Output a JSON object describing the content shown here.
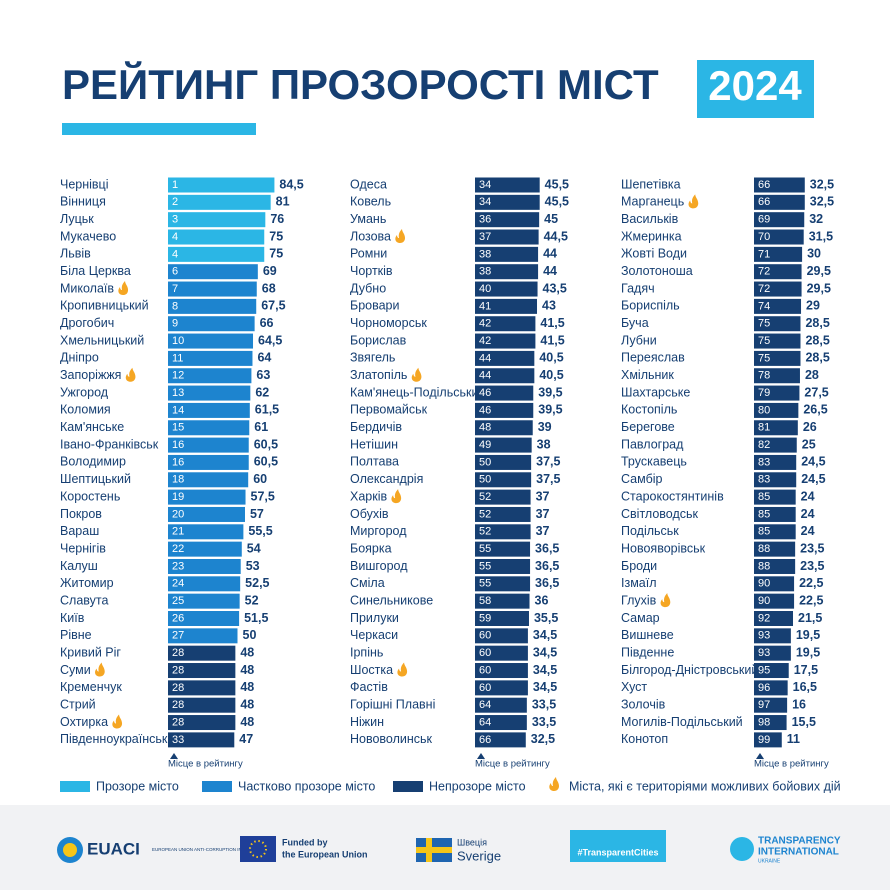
{
  "title": "РЕЙТИНГ ПРОЗОРОСТІ МІСТ",
  "title_year": "2024",
  "axis_note": "Місце в рейтингу",
  "legend": [
    {
      "label": "Прозоре місто",
      "color": "#2bb6e5"
    },
    {
      "label": "Частково прозоре місто",
      "color": "#1d84cf"
    },
    {
      "label": "Непрозоре місто",
      "color": "#163f72"
    },
    {
      "label": "Міста, які є територіями можливих бойових дій",
      "color": "#f5a623"
    }
  ],
  "cities": [
    {
      "city": "Чернівці",
      "rank": 1,
      "score": 84.5,
      "score_label": "84,5",
      "color": "#2bb6e5"
    },
    {
      "city": "Вінниця",
      "rank": 2,
      "score": 81,
      "color": "#2bb6e5"
    },
    {
      "city": "Луцьк",
      "rank": 3,
      "score": 76,
      "color": "#2bb6e5"
    },
    {
      "city": "Мукачево",
      "rank": 4,
      "score": 75,
      "color": "#2bb6e5"
    },
    {
      "city": "Львів",
      "rank": 4,
      "score": 75,
      "color": "#2bb6e5"
    },
    {
      "city": "Біла Церква",
      "rank": 6,
      "score": 69,
      "color": "#1d84cf"
    },
    {
      "city": "Миколаїв",
      "rank": 7,
      "score": 68,
      "color": "#1d84cf",
      "war": true
    },
    {
      "city": "Кропивницький",
      "rank": 8,
      "score": 67.5,
      "score_label": "67,5",
      "color": "#1d84cf"
    },
    {
      "city": "Дрогобич",
      "rank": 9,
      "score": 66,
      "color": "#1d84cf"
    },
    {
      "city": "Хмельницький",
      "rank": 10,
      "score": 64.5,
      "score_label": "64,5",
      "color": "#1d84cf"
    },
    {
      "city": "Дніпро",
      "rank": 11,
      "score": 64,
      "color": "#1d84cf"
    },
    {
      "city": "Запоріжжя",
      "rank": 12,
      "score": 63,
      "color": "#1d84cf",
      "war": true
    },
    {
      "city": "Ужгород",
      "rank": 13,
      "score": 62,
      "color": "#1d84cf"
    },
    {
      "city": "Коломия",
      "rank": 14,
      "score": 61.5,
      "score_label": "61,5",
      "color": "#1d84cf"
    },
    {
      "city": "Кам'янське",
      "rank": 15,
      "score": 61,
      "color": "#1d84cf"
    },
    {
      "city": "Івано-Франківськ",
      "rank": 16,
      "score": 60.5,
      "score_label": "60,5",
      "color": "#1d84cf"
    },
    {
      "city": "Володимир",
      "rank": 16,
      "score": 60.5,
      "score_label": "60,5",
      "color": "#1d84cf"
    },
    {
      "city": "Шептицький",
      "rank": 18,
      "score": 60,
      "color": "#1d84cf"
    },
    {
      "city": "Коростень",
      "rank": 19,
      "score": 57.5,
      "score_label": "57,5",
      "color": "#1d84cf"
    },
    {
      "city": "Покров",
      "rank": 20,
      "score": 57,
      "color": "#1d84cf"
    },
    {
      "city": "Вараш",
      "rank": 21,
      "score": 55.5,
      "score_label": "55,5",
      "color": "#1d84cf"
    },
    {
      "city": "Чернігів",
      "rank": 22,
      "score": 54,
      "color": "#1d84cf"
    },
    {
      "city": "Калуш",
      "rank": 23,
      "score": 53,
      "color": "#1d84cf"
    },
    {
      "city": "Житомир",
      "rank": 24,
      "score": 52.5,
      "score_label": "52,5",
      "color": "#1d84cf"
    },
    {
      "city": "Славута",
      "rank": 25,
      "score": 52,
      "color": "#1d84cf"
    },
    {
      "city": "Київ",
      "rank": 26,
      "score": 51.5,
      "score_label": "51,5",
      "color": "#1d84cf"
    },
    {
      "city": "Рівне",
      "rank": 27,
      "score": 50,
      "color": "#1d84cf"
    },
    {
      "city": "Кривий Ріг",
      "rank": 28,
      "score": 48,
      "color": "#163f72"
    },
    {
      "city": "Суми",
      "rank": 28,
      "score": 48,
      "color": "#163f72",
      "war": true
    },
    {
      "city": "Кременчук",
      "rank": 28,
      "score": 48,
      "color": "#163f72"
    },
    {
      "city": "Стрий",
      "rank": 28,
      "score": 48,
      "color": "#163f72"
    },
    {
      "city": "Охтирка",
      "rank": 28,
      "score": 48,
      "color": "#163f72",
      "war": true
    },
    {
      "city": "Південноукраїнськ",
      "rank": 33,
      "score": 47,
      "color": "#163f72"
    },
    {
      "city": "Одеса",
      "rank": 34,
      "score": 45.5,
      "score_label": "45,5",
      "color": "#163f72"
    },
    {
      "city": "Ковель",
      "rank": 34,
      "score": 45.5,
      "score_label": "45,5",
      "color": "#163f72"
    },
    {
      "city": "Умань",
      "rank": 36,
      "score": 45,
      "color": "#163f72"
    },
    {
      "city": "Лозова",
      "rank": 37,
      "score": 44.5,
      "score_label": "44,5",
      "color": "#163f72",
      "war": true
    },
    {
      "city": "Ромни",
      "rank": 38,
      "score": 44,
      "color": "#163f72"
    },
    {
      "city": "Чортків",
      "rank": 38,
      "score": 44,
      "color": "#163f72"
    },
    {
      "city": "Дубно",
      "rank": 40,
      "score": 43.5,
      "score_label": "43,5",
      "color": "#163f72"
    },
    {
      "city": "Бровари",
      "rank": 41,
      "score": 43,
      "color": "#163f72"
    },
    {
      "city": "Чорноморськ",
      "rank": 42,
      "score": 41.5,
      "score_label": "41,5",
      "color": "#163f72"
    },
    {
      "city": "Борислав",
      "rank": 42,
      "score": 41.5,
      "score_label": "41,5",
      "color": "#163f72"
    },
    {
      "city": "Звягель",
      "rank": 44,
      "score": 40.5,
      "score_label": "40,5",
      "color": "#163f72"
    },
    {
      "city": "Златопіль",
      "rank": 44,
      "score": 40.5,
      "score_label": "40,5",
      "color": "#163f72",
      "war": true
    },
    {
      "city": "Кам'янець-Подільський",
      "rank": 46,
      "score": 39.5,
      "score_label": "39,5",
      "color": "#163f72"
    },
    {
      "city": "Первомайськ",
      "rank": 46,
      "score": 39.5,
      "score_label": "39,5",
      "color": "#163f72"
    },
    {
      "city": "Бердичів",
      "rank": 48,
      "score": 39,
      "color": "#163f72"
    },
    {
      "city": "Нетішин",
      "rank": 49,
      "score": 38,
      "color": "#163f72"
    },
    {
      "city": "Полтава",
      "rank": 50,
      "score": 37.5,
      "score_label": "37,5",
      "color": "#163f72"
    },
    {
      "city": "Олександрія",
      "rank": 50,
      "score": 37.5,
      "score_label": "37,5",
      "color": "#163f72"
    },
    {
      "city": "Харків",
      "rank": 52,
      "score": 37,
      "color": "#163f72",
      "war": true
    },
    {
      "city": "Обухів",
      "rank": 52,
      "score": 37,
      "color": "#163f72"
    },
    {
      "city": "Миргород",
      "rank": 52,
      "score": 37,
      "color": "#163f72"
    },
    {
      "city": "Боярка",
      "rank": 55,
      "score": 36.5,
      "score_label": "36,5",
      "color": "#163f72"
    },
    {
      "city": "Вишгород",
      "rank": 55,
      "score": 36.5,
      "score_label": "36,5",
      "color": "#163f72"
    },
    {
      "city": "Сміла",
      "rank": 55,
      "score": 36.5,
      "score_label": "36,5",
      "color": "#163f72"
    },
    {
      "city": "Синельникове",
      "rank": 58,
      "score": 36,
      "color": "#163f72"
    },
    {
      "city": "Прилуки",
      "rank": 59,
      "score": 35.5,
      "score_label": "35,5",
      "color": "#163f72"
    },
    {
      "city": "Черкаси",
      "rank": 60,
      "score": 34.5,
      "score_label": "34,5",
      "color": "#163f72"
    },
    {
      "city": "Ірпінь",
      "rank": 60,
      "score": 34.5,
      "score_label": "34,5",
      "color": "#163f72"
    },
    {
      "city": "Шостка",
      "rank": 60,
      "score": 34.5,
      "score_label": "34,5",
      "color": "#163f72",
      "war": true
    },
    {
      "city": "Фастів",
      "rank": 60,
      "score": 34.5,
      "score_label": "34,5",
      "color": "#163f72"
    },
    {
      "city": "Горішні Плавні",
      "rank": 64,
      "score": 33.5,
      "score_label": "33,5",
      "color": "#163f72"
    },
    {
      "city": "Ніжин",
      "rank": 64,
      "score": 33.5,
      "score_label": "33,5",
      "color": "#163f72"
    },
    {
      "city": "Нововолинськ",
      "rank": 66,
      "score": 32.5,
      "score_label": "32,5",
      "color": "#163f72"
    },
    {
      "city": "Шепетівка",
      "rank": 66,
      "score": 32.5,
      "score_label": "32,5",
      "color": "#163f72"
    },
    {
      "city": "Марганець",
      "rank": 66,
      "score": 32.5,
      "score_label": "32,5",
      "color": "#163f72",
      "war": true
    },
    {
      "city": "Васильків",
      "rank": 69,
      "score": 32,
      "color": "#163f72"
    },
    {
      "city": "Жмеринка",
      "rank": 70,
      "score": 31.5,
      "score_label": "31,5",
      "color": "#163f72"
    },
    {
      "city": "Жовті Води",
      "rank": 71,
      "score": 30,
      "color": "#163f72"
    },
    {
      "city": "Золотоноша",
      "rank": 72,
      "score": 29.5,
      "score_label": "29,5",
      "color": "#163f72"
    },
    {
      "city": "Гадяч",
      "rank": 72,
      "score": 29.5,
      "score_label": "29,5",
      "color": "#163f72"
    },
    {
      "city": "Бориспіль",
      "rank": 74,
      "score": 29,
      "color": "#163f72"
    },
    {
      "city": "Буча",
      "rank": 75,
      "score": 28.5,
      "score_label": "28,5",
      "color": "#163f72"
    },
    {
      "city": "Лубни",
      "rank": 75,
      "score": 28.5,
      "score_label": "28,5",
      "color": "#163f72"
    },
    {
      "city": "Переяслав",
      "rank": 75,
      "score": 28.5,
      "score_label": "28,5",
      "color": "#163f72"
    },
    {
      "city": "Хмільник",
      "rank": 78,
      "score": 28,
      "color": "#163f72"
    },
    {
      "city": "Шахтарське",
      "rank": 79,
      "score": 27.5,
      "score_label": "27,5",
      "color": "#163f72"
    },
    {
      "city": "Костопіль",
      "rank": 80,
      "score": 26.5,
      "score_label": "26,5",
      "color": "#163f72"
    },
    {
      "city": "Берегове",
      "rank": 81,
      "score": 26,
      "color": "#163f72"
    },
    {
      "city": "Павлоград",
      "rank": 82,
      "score": 25,
      "color": "#163f72"
    },
    {
      "city": "Трускавець",
      "rank": 83,
      "score": 24.5,
      "score_label": "24,5",
      "color": "#163f72"
    },
    {
      "city": "Самбір",
      "rank": 83,
      "score": 24.5,
      "score_label": "24,5",
      "color": "#163f72"
    },
    {
      "city": "Старокостянтинів",
      "rank": 85,
      "score": 24,
      "color": "#163f72"
    },
    {
      "city": "Світловодськ",
      "rank": 85,
      "score": 24,
      "color": "#163f72"
    },
    {
      "city": "Подільськ",
      "rank": 85,
      "score": 24,
      "color": "#163f72"
    },
    {
      "city": "Новояворівськ",
      "rank": 88,
      "score": 23.5,
      "score_label": "23,5",
      "color": "#163f72"
    },
    {
      "city": "Броди",
      "rank": 88,
      "score": 23.5,
      "score_label": "23,5",
      "color": "#163f72"
    },
    {
      "city": "Ізмаїл",
      "rank": 90,
      "score": 22.5,
      "score_label": "22,5",
      "color": "#163f72"
    },
    {
      "city": "Глухів",
      "rank": 90,
      "score": 22.5,
      "score_label": "22,5",
      "color": "#163f72",
      "war": true
    },
    {
      "city": "Самар",
      "rank": 92,
      "score": 21.5,
      "score_label": "21,5",
      "color": "#163f72"
    },
    {
      "city": "Вишневе",
      "rank": 93,
      "score": 19.5,
      "score_label": "19,5",
      "color": "#163f72"
    },
    {
      "city": "Південне",
      "rank": 93,
      "score": 19.5,
      "score_label": "19,5",
      "color": "#163f72"
    },
    {
      "city": "Білгород-Дністровський",
      "rank": 95,
      "score": 17.5,
      "score_label": "17,5",
      "color": "#163f72"
    },
    {
      "city": "Хуст",
      "rank": 96,
      "score": 16.5,
      "score_label": "16,5",
      "color": "#163f72"
    },
    {
      "city": "Золочів",
      "rank": 97,
      "score": 16,
      "color": "#163f72"
    },
    {
      "city": "Могилів-Подільський",
      "rank": 98,
      "score": 15.5,
      "score_label": "15,5",
      "color": "#163f72"
    },
    {
      "city": "Конотоп",
      "rank": 99,
      "score": 11,
      "color": "#163f72"
    }
  ],
  "footer": {
    "euaci": "EUACI",
    "euaci_sub": "EUROPEAN UNION ANTI-CORRUPTION INITIATIVE",
    "eu_1": "Funded by",
    "eu_2": "the European Union",
    "se_1": "Швеція",
    "se_2": "Sverige",
    "tc": "#TransparentCities",
    "ti_1": "TRANSPARENCY",
    "ti_2": "INTERNATIONAL",
    "ti_3": "UKRAINE"
  }
}
